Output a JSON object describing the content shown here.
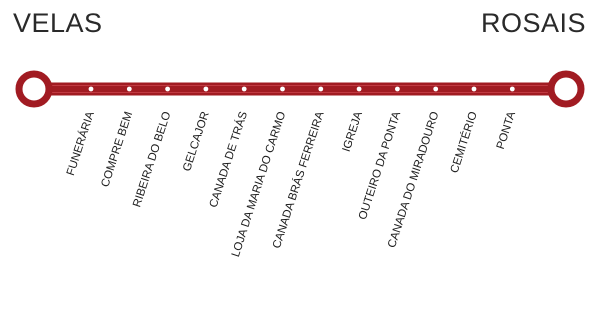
{
  "route": {
    "start": "VELAS",
    "end": "ROSAIS",
    "stops": [
      "FUNERÁRIA",
      "COMPRE BEM",
      "RIBEIRA DO BELO",
      "GELCAJOR",
      "CANADA DE TRÁS",
      "LOJA DA MARIA DO CARMO",
      "CANADA BRÁS FERREIRA",
      "IGREJA",
      "OUTEIRO DA PONTA",
      "CANADA DO MIRADOURO",
      "CEMITÉRIO",
      "PONTA"
    ]
  },
  "colors": {
    "line": "#a11b22",
    "line_highlight": "#c9424a",
    "stop_dot": "#ffffff",
    "text": "#1e1e1e"
  }
}
